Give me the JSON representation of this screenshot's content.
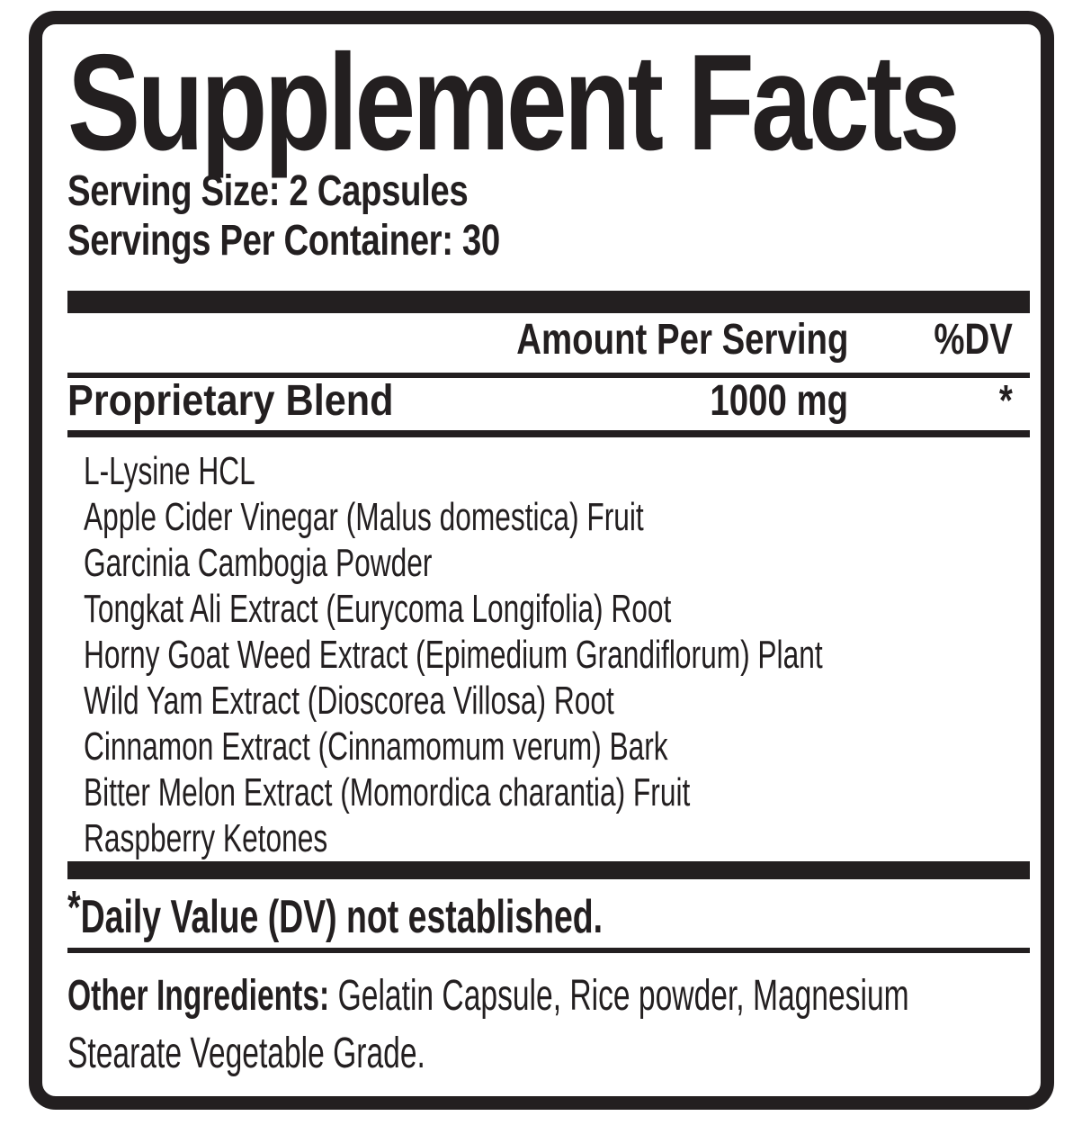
{
  "title": "Supplement Facts",
  "serving": {
    "size_line": "Serving Size: 2 Capsules",
    "per_container_line": "Servings Per Container: 30"
  },
  "table": {
    "amount_header": "Amount Per Serving",
    "dv_header": "%DV",
    "blend": {
      "name": "Proprietary Blend",
      "amount": "1000 mg",
      "dv": "*"
    },
    "ingredients": [
      "L-Lysine HCL",
      "Apple Cider Vinegar (Malus domestica) Fruit",
      "Garcinia Cambogia Powder",
      "Tongkat Ali Extract (Eurycoma Longifolia) Root",
      "Horny Goat Weed Extract (Epimedium Grandiflorum) Plant",
      "Wild Yam Extract (Dioscorea Villosa) Root",
      "Cinnamon Extract (Cinnamomum verum) Bark",
      "Bitter Melon Extract (Momordica charantia) Fruit",
      "Raspberry Ketones"
    ]
  },
  "footnote": {
    "asterisk": "*",
    "text": "Daily Value (DV) not established."
  },
  "other_ingredients": {
    "label": "Other Ingredients:",
    "line1": "Gelatin Capsule, Rice powder, Magnesium",
    "line2": "Stearate Vegetable Grade."
  },
  "colors": {
    "ink": "#231f20",
    "paper": "#ffffff"
  }
}
